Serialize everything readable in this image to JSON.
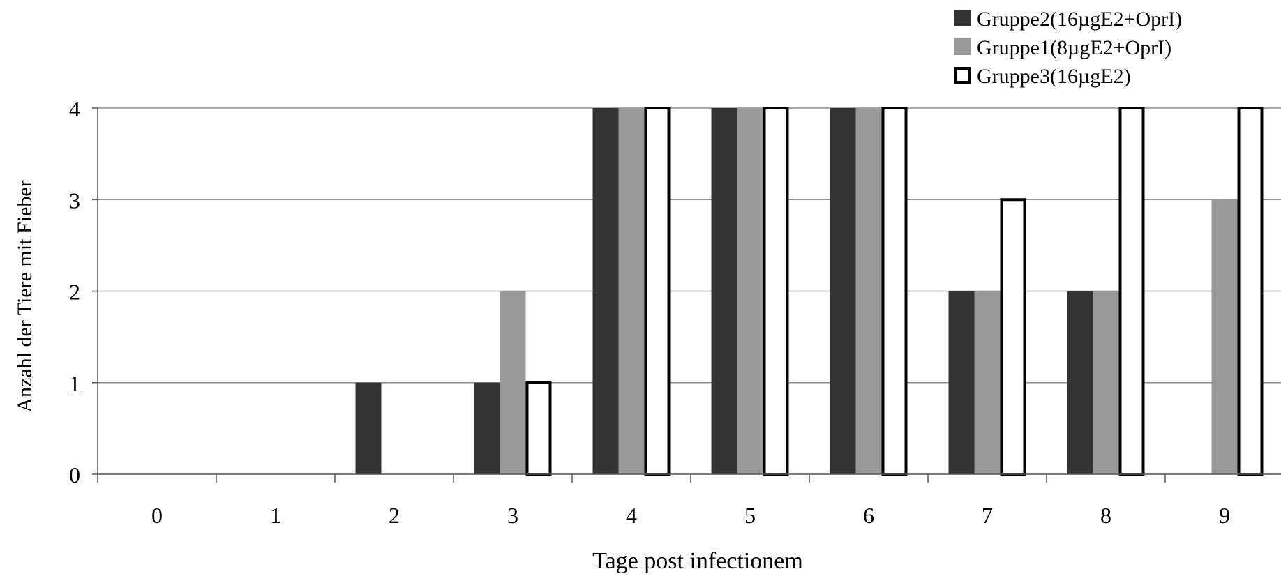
{
  "chart_data": {
    "type": "bar",
    "title": "",
    "xlabel": "Tage post infectionem",
    "ylabel": "Anzahl der Tiere mit Fieber",
    "categories": [
      "0",
      "1",
      "2",
      "3",
      "4",
      "5",
      "6",
      "7",
      "8",
      "9"
    ],
    "yticks": [
      "0",
      "1",
      "2",
      "3",
      "4"
    ],
    "ylim": [
      0,
      4
    ],
    "grid": true,
    "legend_position": "top-right",
    "series": [
      {
        "name": "Gruppe2(16µgE2+OprI)",
        "values": [
          0,
          0,
          1,
          1,
          4,
          4,
          4,
          2,
          2,
          0
        ],
        "style": "solid-dark",
        "color": "#333333"
      },
      {
        "name": "Gruppe1(8µgE2+OprI)",
        "values": [
          0,
          0,
          0,
          2,
          4,
          4,
          4,
          2,
          2,
          3
        ],
        "style": "solid-gray",
        "color": "#999999"
      },
      {
        "name": "Gruppe3(16µgE2)",
        "values": [
          0,
          0,
          0,
          1,
          4,
          4,
          4,
          3,
          4,
          4
        ],
        "style": "outline",
        "color": "#ffffff"
      }
    ]
  }
}
